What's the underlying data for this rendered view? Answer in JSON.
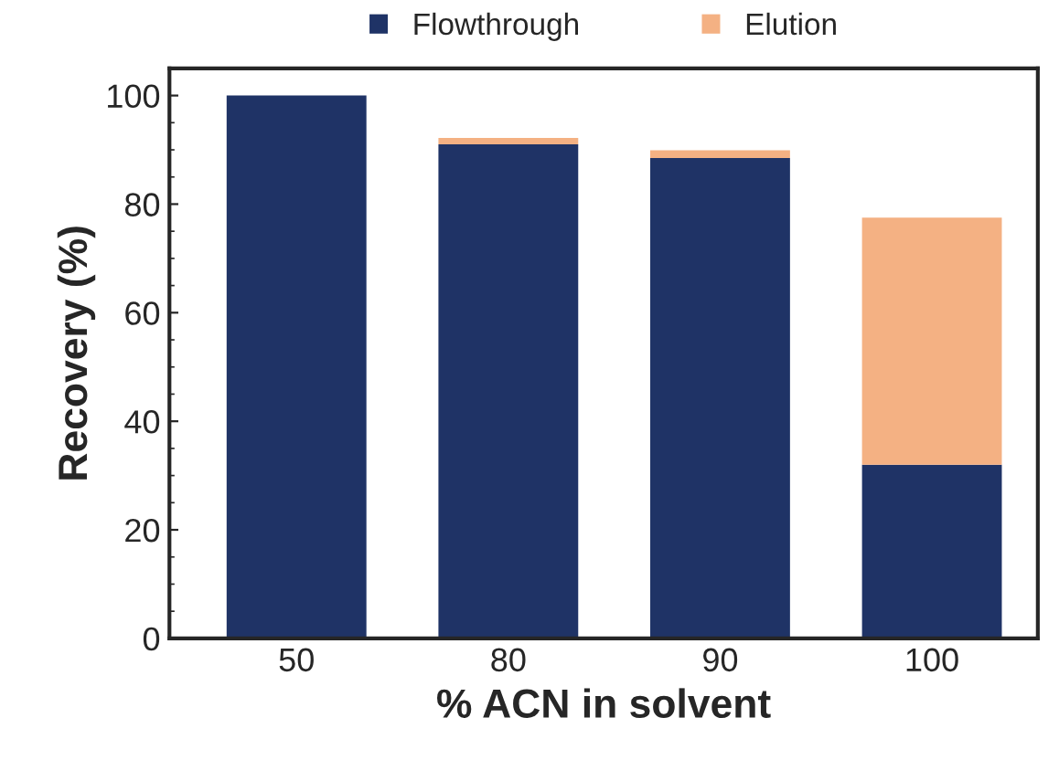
{
  "chart_data": {
    "type": "bar",
    "stacked": true,
    "xlabel": "% ACN in solvent",
    "ylabel": "Recovery (%)",
    "categories": [
      "50",
      "80",
      "90",
      "100"
    ],
    "series": [
      {
        "name": "Flowthrough",
        "color": "#1f3366",
        "values": [
          100,
          91,
          88.5,
          32
        ]
      },
      {
        "name": "Elution",
        "color": "#f4b183",
        "values": [
          null,
          1.2,
          1.4,
          45.5
        ]
      }
    ],
    "ylim": [
      0,
      105
    ],
    "yticks": [
      0,
      20,
      40,
      60,
      80,
      100
    ],
    "grid": false,
    "legend": "top"
  }
}
